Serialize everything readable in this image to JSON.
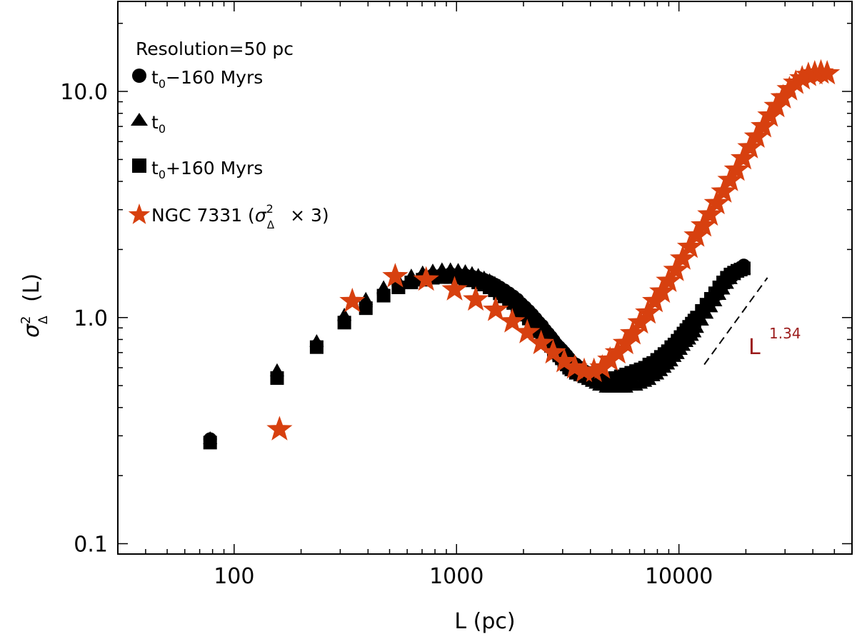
{
  "chart_data": {
    "type": "scatter",
    "title": "",
    "xlabel": "L (pc)",
    "ylabel_symbol": "σ",
    "ylabel_sub": "Δ",
    "ylabel_sup": "2",
    "ylabel_arg": "(L)",
    "xscale": "log",
    "yscale": "log",
    "xlim": [
      30,
      60000
    ],
    "ylim": [
      0.09,
      25
    ],
    "x_ticks": [
      {
        "value": 100,
        "label": "100"
      },
      {
        "value": 1000,
        "label": "1000"
      },
      {
        "value": 10000,
        "label": "10000"
      }
    ],
    "y_ticks": [
      {
        "value": 0.1,
        "label": "0.1"
      },
      {
        "value": 1,
        "label": "1.0"
      },
      {
        "value": 10,
        "label": "10.0"
      }
    ],
    "grid": false,
    "legend_position": "top-left",
    "legend_header": "Resolution=50 pc",
    "series": [
      {
        "name": "t0-160 Myrs",
        "legend_base": "t",
        "legend_sub": "0",
        "legend_rest": "−160 Myrs",
        "marker": "circle",
        "color": "#000000",
        "x": [
          78,
          156,
          235,
          313,
          391,
          470,
          548,
          626,
          704,
          782,
          860,
          939,
          1017,
          1095,
          1174,
          1252,
          1330,
          1408,
          1487,
          1565,
          1643,
          1721,
          1800,
          1878,
          1956,
          2035,
          2113,
          2191,
          2269,
          2348,
          2426,
          2504,
          2582,
          2661,
          2739,
          2817,
          2895,
          2974,
          3052,
          3130,
          3208,
          3287,
          3443,
          3600,
          3756,
          3913,
          4069,
          4226,
          4382,
          4539,
          4695,
          4852,
          5008,
          5165,
          5321,
          5478,
          5634,
          5791,
          6103,
          6416,
          6729,
          7042,
          7355,
          7668,
          7981,
          8294,
          8607,
          8920,
          9233,
          9546,
          9859,
          10172,
          10485,
          10798,
          11111,
          11424,
          11737,
          12050,
          12676,
          13302,
          13928,
          14554,
          15180,
          15806,
          16432,
          17058,
          17684,
          18310,
          18936,
          19562
        ],
        "y": [
          0.29,
          0.55,
          0.75,
          0.97,
          1.12,
          1.27,
          1.38,
          1.45,
          1.5,
          1.54,
          1.55,
          1.56,
          1.55,
          1.54,
          1.52,
          1.5,
          1.47,
          1.44,
          1.4,
          1.36,
          1.32,
          1.28,
          1.24,
          1.2,
          1.15,
          1.11,
          1.07,
          1.03,
          0.99,
          0.95,
          0.92,
          0.88,
          0.85,
          0.82,
          0.79,
          0.76,
          0.74,
          0.72,
          0.7,
          0.68,
          0.66,
          0.64,
          0.62,
          0.6,
          0.58,
          0.57,
          0.56,
          0.55,
          0.54,
          0.54,
          0.53,
          0.53,
          0.53,
          0.53,
          0.53,
          0.53,
          0.54,
          0.54,
          0.55,
          0.56,
          0.57,
          0.58,
          0.6,
          0.61,
          0.63,
          0.65,
          0.67,
          0.7,
          0.72,
          0.75,
          0.78,
          0.8,
          0.83,
          0.86,
          0.89,
          0.92,
          0.95,
          0.98,
          1.05,
          1.12,
          1.18,
          1.25,
          1.32,
          1.4,
          1.47,
          1.53,
          1.58,
          1.62,
          1.66,
          1.7
        ]
      },
      {
        "name": "t0",
        "legend_base": "t",
        "legend_sub": "0",
        "legend_rest": "",
        "marker": "triangle",
        "color": "#000000",
        "x": [
          78,
          156,
          235,
          313,
          391,
          470,
          548,
          626,
          704,
          782,
          860,
          939,
          1017,
          1095,
          1174,
          1252,
          1330,
          1408,
          1487,
          1565,
          1643,
          1721,
          1800,
          1878,
          1956,
          2035,
          2113,
          2191,
          2269,
          2348,
          2426,
          2504,
          2582,
          2661,
          2739,
          2817,
          2895,
          2974,
          3052,
          3130,
          3208,
          3287,
          3443,
          3600,
          3756,
          3913,
          4069,
          4226,
          4382,
          4539,
          4695,
          4852,
          5008,
          5165,
          5321,
          5478,
          5634,
          5791,
          6103,
          6416,
          6729,
          7042,
          7355,
          7668,
          7981,
          8294,
          8607,
          8920,
          9233,
          9546,
          9859,
          10172,
          10485,
          10798,
          11111,
          11424,
          11737,
          12050,
          12676,
          13302,
          13928,
          14554,
          15180,
          15806,
          16432,
          17058,
          17684,
          18310,
          18936,
          19562
        ],
        "y": [
          0.29,
          0.58,
          0.78,
          1.02,
          1.2,
          1.35,
          1.45,
          1.52,
          1.57,
          1.6,
          1.62,
          1.62,
          1.61,
          1.59,
          1.56,
          1.53,
          1.49,
          1.45,
          1.41,
          1.37,
          1.32,
          1.28,
          1.23,
          1.18,
          1.14,
          1.09,
          1.05,
          1.0,
          0.96,
          0.92,
          0.88,
          0.84,
          0.8,
          0.77,
          0.74,
          0.71,
          0.68,
          0.66,
          0.64,
          0.62,
          0.6,
          0.58,
          0.56,
          0.55,
          0.54,
          0.53,
          0.52,
          0.51,
          0.5,
          0.5,
          0.49,
          0.49,
          0.49,
          0.49,
          0.49,
          0.49,
          0.49,
          0.49,
          0.5,
          0.5,
          0.51,
          0.52,
          0.53,
          0.55,
          0.56,
          0.58,
          0.6,
          0.62,
          0.64,
          0.67,
          0.69,
          0.72,
          0.75,
          0.78,
          0.8,
          0.83,
          0.86,
          0.9,
          0.97,
          1.04,
          1.11,
          1.18,
          1.26,
          1.33,
          1.41,
          1.48,
          1.54,
          1.58,
          1.61,
          1.64
        ]
      },
      {
        "name": "t0+160 Myrs",
        "legend_base": "t",
        "legend_sub": "0",
        "legend_rest": "+160 Myrs",
        "marker": "square",
        "color": "#000000",
        "x": [
          78,
          156,
          235,
          313,
          391,
          470,
          548,
          626,
          704,
          782,
          860,
          939,
          1017,
          1095,
          1174,
          1252,
          1330,
          1408,
          1487,
          1565,
          1643,
          1721,
          1800,
          1878,
          1956,
          2035,
          2113,
          2191,
          2269,
          2348,
          2426,
          2504,
          2582,
          2661,
          2739,
          2817,
          2895,
          2974,
          3052,
          3130,
          3208,
          3287,
          3443,
          3600,
          3756,
          3913,
          4069,
          4226,
          4382,
          4539,
          4695,
          4852,
          5008,
          5165,
          5321,
          5478,
          5634,
          5791,
          6103,
          6416,
          6729,
          7042,
          7355,
          7668,
          7981,
          8294,
          8607,
          8920,
          9233,
          9546,
          9859,
          10172,
          10485,
          10798,
          11111,
          11424,
          11737,
          12050,
          12676,
          13302,
          13928,
          14554,
          15180,
          15806,
          16432,
          17058,
          17684,
          18310,
          18936,
          19562
        ],
        "y": [
          0.28,
          0.54,
          0.74,
          0.95,
          1.1,
          1.25,
          1.36,
          1.43,
          1.47,
          1.5,
          1.51,
          1.51,
          1.5,
          1.48,
          1.46,
          1.43,
          1.4,
          1.36,
          1.32,
          1.28,
          1.24,
          1.2,
          1.16,
          1.11,
          1.07,
          1.03,
          0.99,
          0.95,
          0.91,
          0.87,
          0.84,
          0.81,
          0.78,
          0.75,
          0.72,
          0.7,
          0.68,
          0.66,
          0.64,
          0.62,
          0.6,
          0.59,
          0.57,
          0.56,
          0.55,
          0.54,
          0.53,
          0.53,
          0.53,
          0.53,
          0.53,
          0.53,
          0.53,
          0.54,
          0.54,
          0.55,
          0.55,
          0.56,
          0.57,
          0.58,
          0.59,
          0.6,
          0.62,
          0.63,
          0.65,
          0.67,
          0.69,
          0.71,
          0.74,
          0.76,
          0.79,
          0.82,
          0.85,
          0.88,
          0.91,
          0.94,
          0.97,
          1.0,
          1.07,
          1.14,
          1.21,
          1.28,
          1.36,
          1.43,
          1.5,
          1.55,
          1.58,
          1.61,
          1.63,
          1.65
        ]
      },
      {
        "name": "NGC 7331",
        "legend_label": "NGC 7331 (",
        "legend_sym": "σ",
        "legend_sub": "Δ",
        "legend_sup": "2",
        "legend_rest": "× 3)",
        "marker": "star",
        "color": "#d7400f",
        "x": [
          160,
          340,
          530,
          730,
          980,
          1220,
          1500,
          1780,
          2080,
          2400,
          2720,
          3050,
          3400,
          3750,
          4150,
          4520,
          4900,
          5300,
          5750,
          6200,
          6700,
          7250,
          7800,
          8400,
          9000,
          9700,
          10400,
          11200,
          12000,
          12900,
          13800,
          14800,
          15900,
          17000,
          18200,
          19500,
          20900,
          22400,
          24000,
          25700,
          27500,
          29400,
          31400,
          33500,
          35800,
          38200,
          40800,
          43500,
          46400
        ],
        "y": [
          0.32,
          1.18,
          1.52,
          1.47,
          1.33,
          1.2,
          1.08,
          0.96,
          0.86,
          0.77,
          0.7,
          0.64,
          0.6,
          0.58,
          0.58,
          0.6,
          0.65,
          0.7,
          0.77,
          0.85,
          0.95,
          1.05,
          1.18,
          1.3,
          1.45,
          1.62,
          1.82,
          2.05,
          2.3,
          2.55,
          2.85,
          3.2,
          3.6,
          4.05,
          4.5,
          5.05,
          5.65,
          6.3,
          7.0,
          7.8,
          8.6,
          9.4,
          10.2,
          10.9,
          11.4,
          11.8,
          12.0,
          12.1,
          12.0
        ]
      }
    ],
    "annotations": [
      {
        "type": "dashed-line",
        "label_base": "L",
        "label_sup": "1.34",
        "color": "#9b1b1b",
        "x": [
          13000,
          25000
        ],
        "y": [
          0.62,
          1.5
        ]
      }
    ]
  }
}
